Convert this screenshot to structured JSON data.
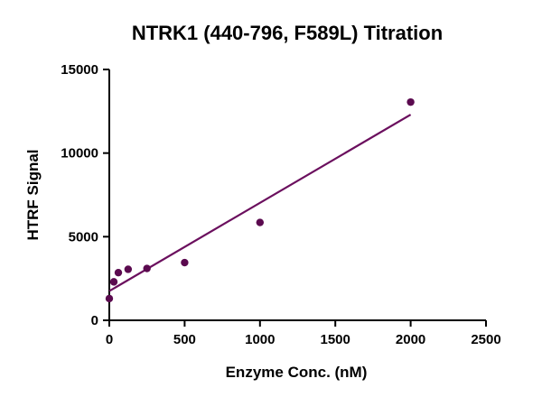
{
  "chart_data": {
    "type": "scatter",
    "title": "NTRK1 (440-796, F589L) Titration",
    "xlabel": "Enzyme Conc. (nM)",
    "ylabel": "HTRF Signal",
    "xlim": [
      0,
      2500
    ],
    "ylim": [
      0,
      15000
    ],
    "xticks": [
      0,
      500,
      1000,
      1500,
      2000,
      2500
    ],
    "yticks": [
      0,
      5000,
      10000,
      15000
    ],
    "xtick_labels": [
      "0",
      "500",
      "1000",
      "1500",
      "2000",
      "2500"
    ],
    "ytick_labels": [
      "0",
      "5000",
      "10000",
      "15000"
    ],
    "grid": false,
    "series": [
      {
        "name": "HTRF Signal",
        "x": [
          0,
          30,
          60,
          125,
          250,
          500,
          1000,
          2000
        ],
        "y": [
          1300,
          2300,
          2850,
          3050,
          3100,
          3450,
          5850,
          13050
        ]
      }
    ],
    "fit_line": {
      "x": [
        0,
        2000
      ],
      "y": [
        1750,
        12300
      ]
    },
    "colors": {
      "marker": "#5b0a4f",
      "fit": "#6b0f5e",
      "axis": "#000000"
    }
  }
}
